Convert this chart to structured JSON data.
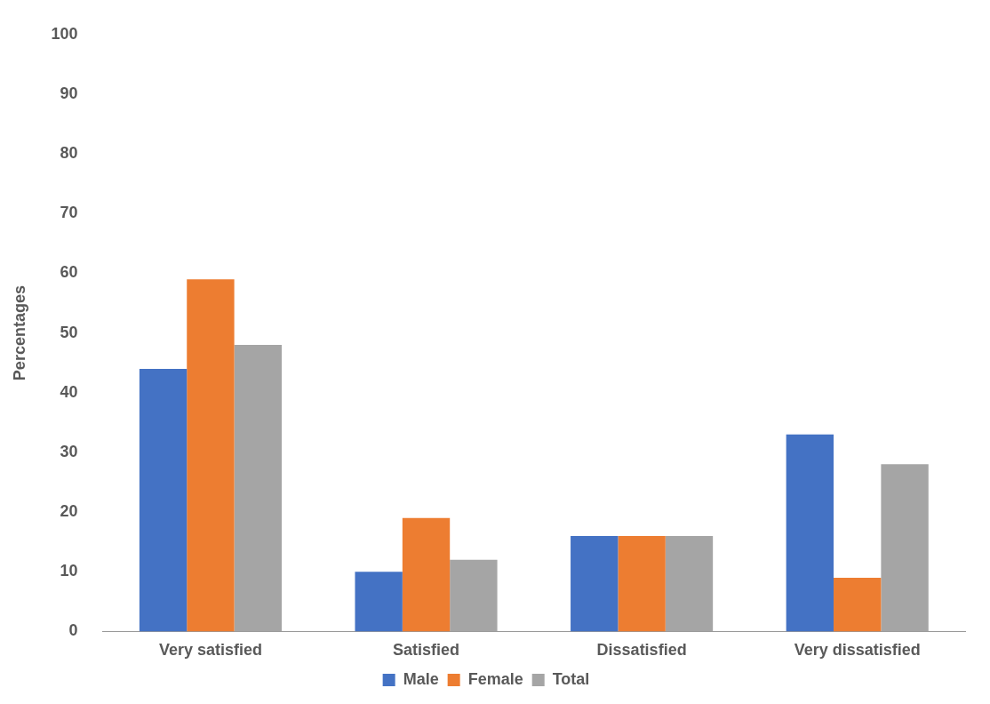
{
  "chart_data": {
    "type": "bar",
    "ylabel": "Percentages",
    "categories": [
      "Very satisfied",
      "Satisfied",
      "Dissatisfied",
      "Very dissatisfied"
    ],
    "series": [
      {
        "name": "Male",
        "color": "#4472c4",
        "values": [
          44,
          10,
          16,
          33
        ]
      },
      {
        "name": "Female",
        "color": "#ed7d31",
        "values": [
          59,
          19,
          16,
          9
        ]
      },
      {
        "name": "Total",
        "color": "#a5a5a5",
        "values": [
          48,
          12,
          16,
          28
        ]
      }
    ],
    "ylim": [
      0,
      100
    ],
    "yticks": [
      0,
      10,
      20,
      30,
      40,
      50,
      60,
      70,
      80,
      90,
      100
    ],
    "grid": false,
    "legend": "bottom"
  }
}
